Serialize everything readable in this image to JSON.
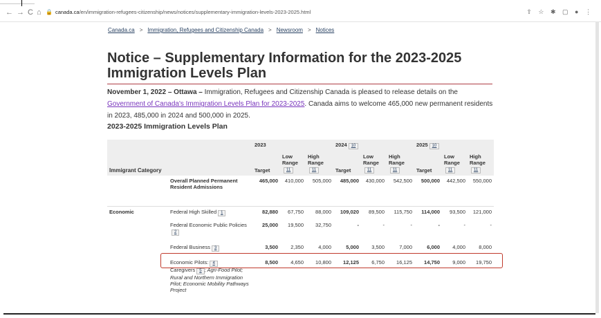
{
  "browser": {
    "url_host": "canada.ca",
    "url_path": "/en/immigration-refugees-citizenship/news/notices/supplementary-immigration-levels-2023-2025.html",
    "nav": {
      "back": "←",
      "forward": "→",
      "reload": "C",
      "home": "⌂"
    },
    "icons": [
      "⇧",
      "☆",
      "✱",
      "▢",
      "●",
      "⋮"
    ]
  },
  "breadcrumb": [
    "Canada.ca",
    "Immigration, Refugees and Citizenship Canada",
    "Newsroom",
    "Notices"
  ],
  "breadcrumb_sep": ">",
  "title": "Notice – Supplementary Information for the 2023-2025 Immigration Levels Plan",
  "intro": {
    "date_place": "November 1, 2022 – Ottawa –",
    "text1": " Immigration, Refugees and Citizenship Canada is pleased to release details on the ",
    "link": "Government of Canada's Immigration Levels Plan for 2023-2025",
    "text2": ". Canada aims to welcome 465,000 new permanent residents in 2023, 485,000 in 2024 and 500,000 in 2025."
  },
  "table_title": "2023-2025 Immigration Levels Plan",
  "table": {
    "years": [
      {
        "label": "2023",
        "note": ""
      },
      {
        "label": "2024",
        "note": "10"
      },
      {
        "label": "2025",
        "note": "10"
      }
    ],
    "category_header": "Immigrant Category",
    "col_target": "Target",
    "col_low": "Low Range",
    "col_high": "High Range",
    "col_note": "11",
    "rows": [
      {
        "category": "",
        "name": "Overall Planned Permanent Resident Admissions",
        "name_bold": true,
        "note": "",
        "values": [
          "465,000",
          "410,000",
          "505,000",
          "485,000",
          "430,000",
          "542,500",
          "500,000",
          "442,500",
          "550,000"
        ]
      },
      {
        "category": "Economic",
        "name": "Federal High Skilled",
        "note": "1",
        "values": [
          "82,880",
          "67,750",
          "88,000",
          "109,020",
          "89,500",
          "115,750",
          "114,000",
          "93,500",
          "121,000"
        ]
      },
      {
        "category": "",
        "name": "Federal Economic Public Policies",
        "note": "2",
        "values": [
          "25,000",
          "19,500",
          "32,750",
          "-",
          "-",
          "-",
          "-",
          "-",
          "-"
        ]
      },
      {
        "category": "",
        "name": "Federal Business",
        "note": "3",
        "values": [
          "3,500",
          "2,350",
          "4,000",
          "5,000",
          "3,500",
          "7,000",
          "6,000",
          "4,000",
          "8,000"
        ]
      },
      {
        "category": "",
        "name": "Economic Pilots:",
        "note": "4",
        "sub1": "Caregivers",
        "sub1_note": "5",
        "sub2": "; Agri-Food Pilot; Rural and Northern Immigration Pilot; Economic Mobility Pathways Project",
        "values": [
          "8,500",
          "4,650",
          "10,800",
          "12,125",
          "6,750",
          "16,125",
          "14,750",
          "9,000",
          "19,750"
        ]
      }
    ]
  }
}
